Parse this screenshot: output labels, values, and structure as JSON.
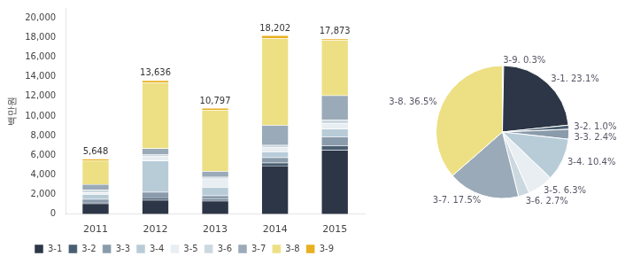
{
  "chart_data": [
    {
      "type": "bar",
      "stacked": true,
      "categories": [
        "2011",
        "2012",
        "2013",
        "2014",
        "2015"
      ],
      "series": [
        {
          "name": "3-1",
          "color": "#2c3647",
          "values": [
            1088.546,
            1450,
            1350,
            4950,
            6550
          ]
        },
        {
          "name": "3-2",
          "color": "#4a5e72",
          "values": [
            155.507,
            250,
            180,
            280,
            450
          ]
        },
        {
          "name": "3-3",
          "color": "#8a9bab",
          "values": [
            290.279,
            550,
            380,
            550,
            900
          ]
        },
        {
          "name": "3-4",
          "color": "#b8ccd8",
          "values": [
            497.621,
            3200,
            850,
            580,
            780
          ]
        },
        {
          "name": "3-5",
          "color": "#e8eef2",
          "values": [
            186.608,
            480,
            850,
            480,
            570
          ]
        },
        {
          "name": "3-6",
          "color": "#ccd8e0",
          "values": [
            259.178,
            180,
            190,
            190,
            370
          ]
        },
        {
          "name": "3-7",
          "color": "#9aaab8",
          "values": [
            580.558,
            590,
            580,
            2050,
            2480
          ]
        },
        {
          "name": "3-8",
          "color": "#ede084",
          "values": [
            2436.27,
            6700,
            6220,
            8820,
            5600
          ]
        },
        {
          "name": "3-9",
          "color": "#e8b020",
          "values": [
            153.433,
            236,
            197,
            302,
            173
          ]
        }
      ],
      "totals": [
        5648,
        13636,
        10797,
        18202,
        17873
      ],
      "total_labels": [
        "5,648",
        "13,636",
        "10,797",
        "18,202",
        "17,873"
      ],
      "ylabel": "백만원",
      "ylim": [
        0,
        21000
      ],
      "yticks": [
        0,
        {
          "value": 2000,
          "label": "2,000"
        },
        {
          "value": 4000,
          "label": "4,000"
        },
        {
          "value": 6000,
          "label": "6,000"
        },
        {
          "value": 8000,
          "label": "8,000"
        },
        {
          "value": 10000,
          "label": "10,000"
        },
        {
          "value": 12000,
          "label": "12,000"
        },
        {
          "value": 14000,
          "label": "14,000"
        },
        {
          "value": 16000,
          "label": "16,000"
        },
        {
          "value": 18000,
          "label": "18,000"
        },
        {
          "value": 20000,
          "label": "20,000"
        }
      ],
      "grid": false,
      "legend": "bottom"
    },
    {
      "type": "pie",
      "categories": [
        "3-9",
        "3-1",
        "3-2",
        "3-3",
        "3-4",
        "3-5",
        "3-6",
        "3-7",
        "3-8"
      ],
      "values": [
        0.3,
        23.1,
        1.0,
        2.4,
        10.4,
        6.3,
        2.7,
        17.5,
        36.5
      ],
      "value_labels": [
        "3-9. 0.3%",
        "3-1. 23.1%",
        "3-2. 1.0%",
        "3-3. 2.4%",
        "3-4. 10.4%",
        "3-5. 6.3%",
        "3-6. 2.7%",
        "3-7. 17.5%",
        "3-8. 36.5%"
      ],
      "colors": [
        "#e8b020",
        "#2c3647",
        "#4a5e72",
        "#8a9bab",
        "#b8ccd8",
        "#e8eef2",
        "#ccd8e0",
        "#9aaab8",
        "#ede084"
      ],
      "data_labels": true
    }
  ]
}
